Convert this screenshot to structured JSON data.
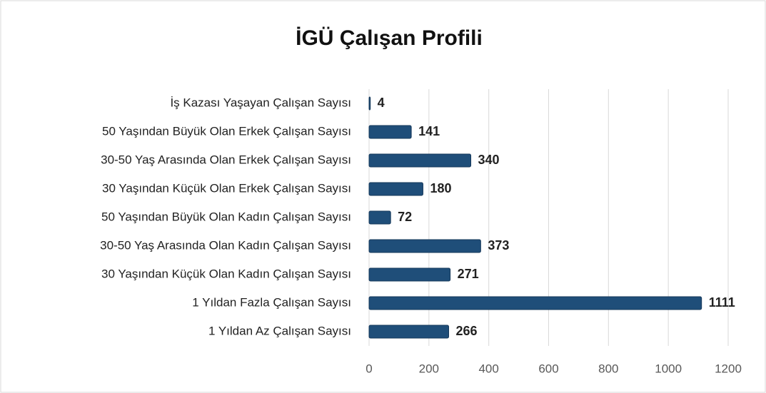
{
  "chart_data": {
    "type": "barh",
    "title": "İGÜ Çalışan Profili",
    "categories": [
      "İş Kazası Yaşayan Çalışan Sayısı",
      "50 Yaşından Büyük Olan Erkek Çalışan Sayısı",
      "30-50 Yaş Arasında Olan Erkek Çalışan Sayısı",
      "30 Yaşından Küçük Olan Erkek Çalışan Sayısı",
      "50 Yaşından Büyük Olan Kadın Çalışan Sayısı",
      "30-50 Yaş Arasında Olan Kadın Çalışan Sayısı",
      "30 Yaşından Küçük Olan Kadın Çalışan Sayısı",
      "1 Yıldan Fazla Çalışan Sayısı",
      "1 Yıldan Az Çalışan Sayısı"
    ],
    "values": [
      4,
      141,
      340,
      180,
      72,
      373,
      271,
      1111,
      266
    ],
    "color": "#1f4e79",
    "xlim": [
      0,
      1200
    ],
    "xticks": [
      0,
      200,
      400,
      600,
      800,
      1000,
      1200
    ],
    "grid": true
  }
}
